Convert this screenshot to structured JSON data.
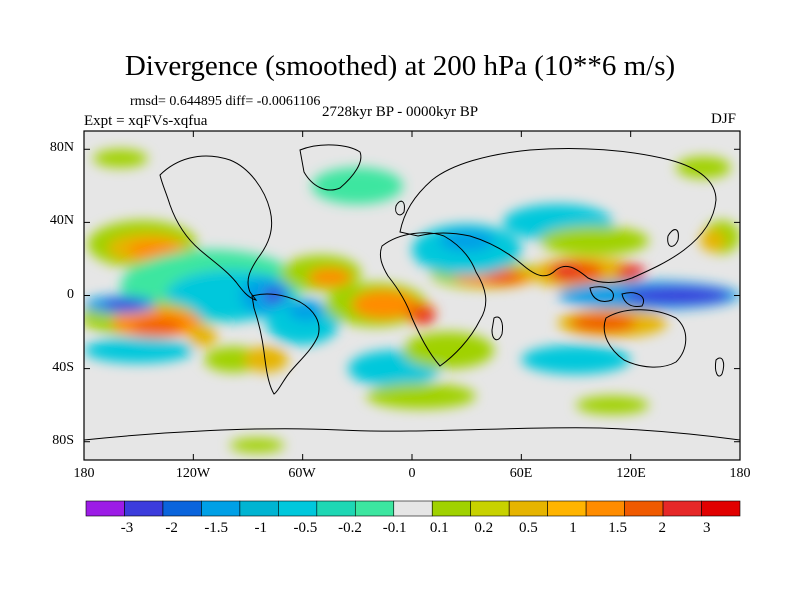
{
  "title": "Divergence (smoothed) at 200 hPa (10**6 m/s)",
  "stats": "rmsd= 0.644895  diff= -0.0061106",
  "period": "2728kyr BP - 0000kyr BP",
  "experiment": "Expt = xqFVs-xqfua",
  "season": "DJF",
  "map": {
    "lat_ticks": [
      "80N",
      "40N",
      "0",
      "40S",
      "80S"
    ],
    "lon_ticks": [
      "180",
      "120W",
      "60W",
      "0",
      "60E",
      "120E",
      "180"
    ],
    "background_color": "#e6e6e6",
    "fields": [
      {
        "cls": 0.2,
        "color": "#a0d200",
        "lon": 170,
        "lat": 32,
        "rx": 10,
        "ry": 9
      },
      {
        "cls": 0.5,
        "color": "#e6b400",
        "lon": 165,
        "lat": 30,
        "rx": 7,
        "ry": 6
      },
      {
        "cls": 0.2,
        "color": "#a0d200",
        "lon": -148,
        "lat": 28,
        "rx": 30,
        "ry": 13
      },
      {
        "cls": 0.5,
        "color": "#e6b400",
        "lon": -145,
        "lat": 26,
        "rx": 22,
        "ry": 8
      },
      {
        "cls": 1,
        "color": "#ff8c00",
        "lon": -142,
        "lat": 25,
        "rx": 14,
        "ry": 5
      },
      {
        "cls": -0.1,
        "color": "#3ce6a0",
        "lon": -110,
        "lat": 5,
        "rx": 50,
        "ry": 20
      },
      {
        "cls": -0.5,
        "color": "#00c8dc",
        "lon": -100,
        "lat": 0,
        "rx": 35,
        "ry": 14
      },
      {
        "cls": -1,
        "color": "#00a0e6",
        "lon": -80,
        "lat": 0,
        "rx": 14,
        "ry": 10
      },
      {
        "cls": -2,
        "color": "#3c3cdc",
        "lon": -76,
        "lat": 0,
        "rx": 5,
        "ry": 4
      },
      {
        "cls": 0.2,
        "color": "#a0d200",
        "lon": -150,
        "lat": -12,
        "rx": 32,
        "ry": 10
      },
      {
        "cls": 1,
        "color": "#ff8c00",
        "lon": -140,
        "lat": -15,
        "rx": 25,
        "ry": 8
      },
      {
        "cls": 1.5,
        "color": "#f05a00",
        "lon": -140,
        "lat": -17,
        "rx": 14,
        "ry": 4
      },
      {
        "cls": -1,
        "color": "#00a0e6",
        "lon": -160,
        "lat": -5,
        "rx": 20,
        "ry": 5
      },
      {
        "cls": -2,
        "color": "#3c3cdc",
        "lon": -158,
        "lat": -5,
        "rx": 12,
        "ry": 3
      },
      {
        "cls": -0.5,
        "color": "#00c8dc",
        "lon": -150,
        "lat": -30,
        "rx": 30,
        "ry": 7
      },
      {
        "cls": 0.5,
        "color": "#e6b400",
        "lon": -115,
        "lat": -22,
        "rx": 8,
        "ry": 6
      },
      {
        "cls": 0.2,
        "color": "#a0d200",
        "lon": -98,
        "lat": -35,
        "rx": 16,
        "ry": 7
      },
      {
        "cls": 0.5,
        "color": "#e6b400",
        "lon": -80,
        "lat": -35,
        "rx": 12,
        "ry": 7
      },
      {
        "cls": -0.5,
        "color": "#00c8dc",
        "lon": -60,
        "lat": -15,
        "rx": 20,
        "ry": 12
      },
      {
        "cls": -1,
        "color": "#00a0e6",
        "lon": -58,
        "lat": -8,
        "rx": 10,
        "ry": 6
      },
      {
        "cls": 0.2,
        "color": "#a0d200",
        "lon": -50,
        "lat": 12,
        "rx": 22,
        "ry": 10
      },
      {
        "cls": 1,
        "color": "#ff8c00",
        "lon": -45,
        "lat": 10,
        "rx": 12,
        "ry": 5
      },
      {
        "cls": 0.2,
        "color": "#a0d200",
        "lon": -20,
        "lat": -5,
        "rx": 28,
        "ry": 12
      },
      {
        "cls": 1,
        "color": "#ff8c00",
        "lon": -15,
        "lat": -5,
        "rx": 18,
        "ry": 8
      },
      {
        "cls": 1.5,
        "color": "#f05a00",
        "lon": 5,
        "lat": -10,
        "rx": 8,
        "ry": 6
      },
      {
        "cls": 2,
        "color": "#e62828",
        "lon": 8,
        "lat": -12,
        "rx": 4,
        "ry": 4
      },
      {
        "cls": -0.5,
        "color": "#00c8dc",
        "lon": -10,
        "lat": -40,
        "rx": 25,
        "ry": 10
      },
      {
        "cls": 0.2,
        "color": "#a0d200",
        "lon": 20,
        "lat": -30,
        "rx": 25,
        "ry": 10
      },
      {
        "cls": 0.2,
        "color": "#a0d200",
        "lon": 5,
        "lat": -55,
        "rx": 30,
        "ry": 7
      },
      {
        "cls": 0.2,
        "color": "#a0d200",
        "lon": 40,
        "lat": 12,
        "rx": 30,
        "ry": 8
      },
      {
        "cls": 1,
        "color": "#ff8c00",
        "lon": 45,
        "lat": 10,
        "rx": 22,
        "ry": 5
      },
      {
        "cls": 1.5,
        "color": "#f05a00",
        "lon": 50,
        "lat": 10,
        "rx": 10,
        "ry": 4
      },
      {
        "cls": -0.5,
        "color": "#00c8dc",
        "lon": 30,
        "lat": 25,
        "rx": 30,
        "ry": 14
      },
      {
        "cls": -1,
        "color": "#00a0e6",
        "lon": 30,
        "lat": 30,
        "rx": 15,
        "ry": 6
      },
      {
        "cls": -0.5,
        "color": "#00c8dc",
        "lon": 80,
        "lat": 40,
        "rx": 30,
        "ry": 10
      },
      {
        "cls": 0.2,
        "color": "#a0d200",
        "lon": 100,
        "lat": 30,
        "rx": 30,
        "ry": 8
      },
      {
        "cls": 0.5,
        "color": "#e6b400",
        "lon": 95,
        "lat": 12,
        "rx": 30,
        "ry": 9
      },
      {
        "cls": 1.5,
        "color": "#f05a00",
        "lon": 90,
        "lat": 13,
        "rx": 15,
        "ry": 6
      },
      {
        "cls": 2,
        "color": "#e62828",
        "lon": 84,
        "lat": 13,
        "rx": 8,
        "ry": 4
      },
      {
        "cls": 2,
        "color": "#e62828",
        "lon": 120,
        "lat": 13,
        "rx": 8,
        "ry": 4
      },
      {
        "cls": -1,
        "color": "#00a0e6",
        "lon": 130,
        "lat": 0,
        "rx": 50,
        "ry": 8
      },
      {
        "cls": -2,
        "color": "#3c3cdc",
        "lon": 145,
        "lat": 0,
        "rx": 30,
        "ry": 5
      },
      {
        "cls": 0.5,
        "color": "#e6b400",
        "lon": 110,
        "lat": -15,
        "rx": 30,
        "ry": 8
      },
      {
        "cls": 1.5,
        "color": "#f05a00",
        "lon": 105,
        "lat": -15,
        "rx": 18,
        "ry": 5
      },
      {
        "cls": -0.5,
        "color": "#00c8dc",
        "lon": 90,
        "lat": -35,
        "rx": 30,
        "ry": 8
      },
      {
        "cls": 0.2,
        "color": "#a0d200",
        "lon": 160,
        "lat": 70,
        "rx": 15,
        "ry": 6
      },
      {
        "cls": 0.2,
        "color": "#a0d200",
        "lon": -160,
        "lat": 75,
        "rx": 15,
        "ry": 5
      },
      {
        "cls": -0.1,
        "color": "#3ce6a0",
        "lon": -30,
        "lat": 60,
        "rx": 25,
        "ry": 10
      },
      {
        "cls": 0.2,
        "color": "#a0d200",
        "lon": -85,
        "lat": -82,
        "rx": 15,
        "ry": 4
      },
      {
        "cls": 0.2,
        "color": "#a0d200",
        "lon": 110,
        "lat": -60,
        "rx": 20,
        "ry": 5
      }
    ]
  },
  "colorbar": {
    "colors": [
      "#9c1ce6",
      "#3c3cdc",
      "#0a64dc",
      "#00a0e6",
      "#00b4d2",
      "#00c8dc",
      "#1ed7b4",
      "#3ce6a0",
      "#e6e6e6",
      "#a0d200",
      "#c8d200",
      "#e6b400",
      "#ffb400",
      "#ff8c00",
      "#f05a00",
      "#e62828",
      "#e10000"
    ],
    "labels": [
      "-3",
      "-2",
      "-1.5",
      "-1",
      "-0.5",
      "-0.2",
      "-0.1",
      "0.1",
      "0.2",
      "0.5",
      "1",
      "1.5",
      "2",
      "3"
    ]
  }
}
